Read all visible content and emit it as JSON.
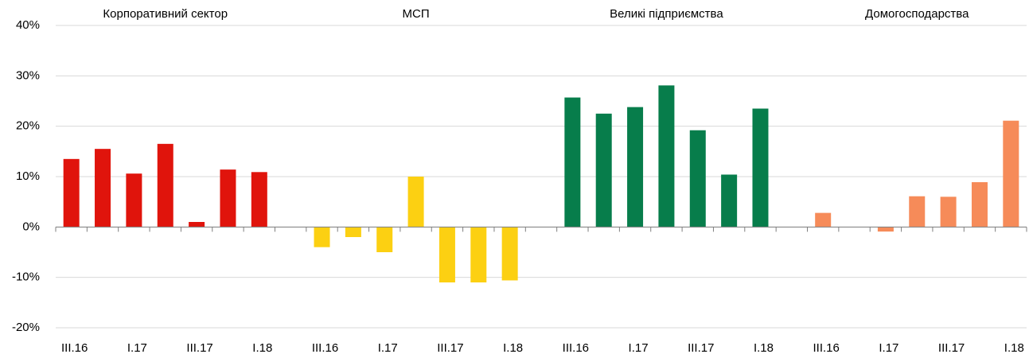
{
  "chart_data": {
    "type": "bar",
    "categories": [
      "III.16",
      null,
      "I.17",
      null,
      "III.17",
      null,
      "I.18",
      null,
      "III.16",
      null,
      "I.17",
      null,
      "III.17",
      null,
      "I.18",
      null,
      "III.16",
      null,
      "I.17",
      null,
      "III.17",
      null,
      "I.18",
      null,
      "III.16",
      null,
      "I.17",
      null,
      "III.17",
      null,
      "I.18"
    ],
    "series": [
      {
        "name": "Корпоративний сектор",
        "color": "#e0140c",
        "values": [
          13.5,
          15.5,
          10.6,
          16.5,
          1.0,
          11.4,
          10.9,
          null,
          null,
          null,
          null,
          null,
          null,
          null,
          null,
          null,
          null,
          null,
          null,
          null,
          null,
          null,
          null,
          null,
          null,
          null,
          null,
          null,
          null,
          null,
          null
        ]
      },
      {
        "name": "МСП",
        "color": "#fcd012",
        "values": [
          null,
          null,
          null,
          null,
          null,
          null,
          null,
          null,
          -4.0,
          -2.0,
          -5.0,
          10.0,
          -11.0,
          -11.0,
          -10.6,
          null,
          null,
          null,
          null,
          null,
          null,
          null,
          null,
          null,
          null,
          null,
          null,
          null,
          null,
          null,
          null
        ]
      },
      {
        "name": "Великі підприємства",
        "color": "#077d4b",
        "values": [
          null,
          null,
          null,
          null,
          null,
          null,
          null,
          null,
          null,
          null,
          null,
          null,
          null,
          null,
          null,
          null,
          25.7,
          22.5,
          23.8,
          28.1,
          19.2,
          10.4,
          23.5,
          null,
          null,
          null,
          null,
          null,
          null,
          null,
          null
        ]
      },
      {
        "name": "Домогосподарства",
        "color": "#f68b59",
        "values": [
          null,
          null,
          null,
          null,
          null,
          null,
          null,
          null,
          null,
          null,
          null,
          null,
          null,
          null,
          null,
          null,
          null,
          null,
          null,
          null,
          null,
          null,
          null,
          null,
          2.8,
          0,
          -0.9,
          6.1,
          6.0,
          8.9,
          21.1
        ]
      }
    ],
    "ylim": [
      -20,
      40
    ],
    "yticks": [
      {
        "value": -20,
        "label": "-20%"
      },
      {
        "value": -10,
        "label": "-10%"
      },
      {
        "value": 0,
        "label": "0%"
      },
      {
        "value": 10,
        "label": "10%"
      },
      {
        "value": 20,
        "label": "20%"
      },
      {
        "value": 30,
        "label": "30%"
      },
      {
        "value": 40,
        "label": "40%"
      }
    ],
    "grid": true
  }
}
